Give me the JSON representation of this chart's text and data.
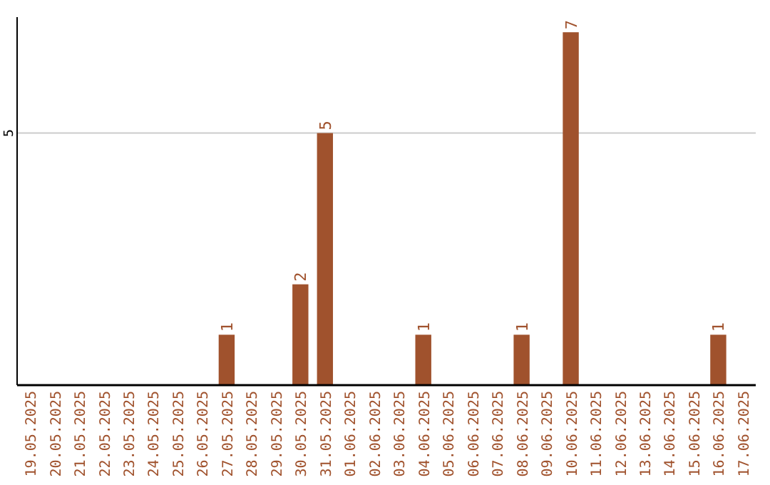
{
  "chart_data": {
    "type": "bar",
    "categories": [
      "19.05.2025",
      "20.05.2025",
      "21.05.2025",
      "22.05.2025",
      "23.05.2025",
      "24.05.2025",
      "25.05.2025",
      "26.05.2025",
      "27.05.2025",
      "28.05.2025",
      "29.05.2025",
      "30.05.2025",
      "31.05.2025",
      "01.06.2025",
      "02.06.2025",
      "03.06.2025",
      "04.06.2025",
      "05.06.2025",
      "06.06.2025",
      "07.06.2025",
      "08.06.2025",
      "09.06.2025",
      "10.06.2025",
      "11.06.2025",
      "12.06.2025",
      "13.06.2025",
      "14.06.2025",
      "15.06.2025",
      "16.06.2025",
      "17.06.2025"
    ],
    "values": [
      0,
      0,
      0,
      0,
      0,
      0,
      0,
      0,
      1,
      0,
      0,
      2,
      5,
      0,
      0,
      0,
      1,
      0,
      0,
      0,
      1,
      0,
      7,
      0,
      0,
      0,
      0,
      0,
      1,
      0
    ],
    "value_labels": [
      null,
      null,
      null,
      null,
      null,
      null,
      null,
      null,
      "1",
      null,
      null,
      "2",
      "5",
      null,
      null,
      null,
      "1",
      null,
      null,
      null,
      "1",
      null,
      "7",
      null,
      null,
      null,
      null,
      null,
      "1",
      null
    ],
    "color": "#a0522d",
    "ylim": [
      0,
      7.3
    ],
    "yticks": [
      5
    ],
    "grid": "y"
  }
}
